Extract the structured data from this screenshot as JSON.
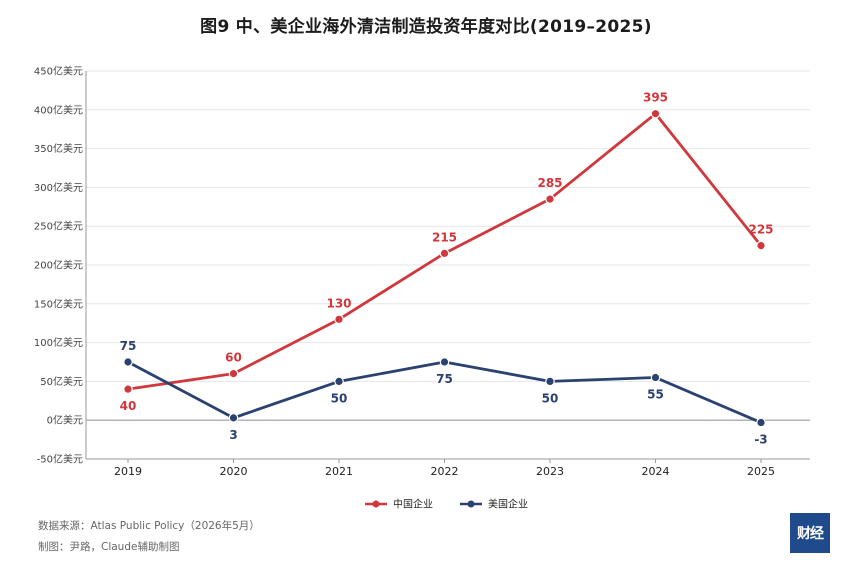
{
  "title": "图9  中、美企业海外清洁制造投资年度对比(2019–2025)",
  "chart_data": {
    "type": "line",
    "categories": [
      "2019",
      "2020",
      "2021",
      "2022",
      "2023",
      "2024",
      "2025"
    ],
    "series": [
      {
        "name": "中国企业",
        "color": "#d0383e",
        "values": [
          40,
          60,
          130,
          215,
          285,
          395,
          225
        ],
        "label_position": [
          "below",
          "above",
          "above",
          "above",
          "above",
          "above",
          "above"
        ]
      },
      {
        "name": "美国企业",
        "color": "#2b4170",
        "values": [
          75,
          3,
          50,
          75,
          50,
          55,
          -3
        ],
        "label_position": [
          "above",
          "below",
          "below",
          "below",
          "below",
          "below",
          "below"
        ]
      }
    ],
    "ylim": [
      -50,
      450
    ],
    "yticks": [
      -50,
      0,
      50,
      100,
      150,
      200,
      250,
      300,
      350,
      400,
      450
    ],
    "y_tick_labels": [
      "-50亿美元",
      "0亿美元",
      "50亿美元",
      "100亿美元",
      "150亿美元",
      "200亿美元",
      "250亿美元",
      "300亿美元",
      "350亿美元",
      "400亿美元",
      "450亿美元"
    ],
    "grid": true,
    "legend": "bottom-center"
  },
  "footer": {
    "source": "数据来源：Atlas Public Policy（2026年5月）",
    "credit": "制图：尹路，Claude辅助制图"
  },
  "logo": {
    "text": "财经"
  }
}
